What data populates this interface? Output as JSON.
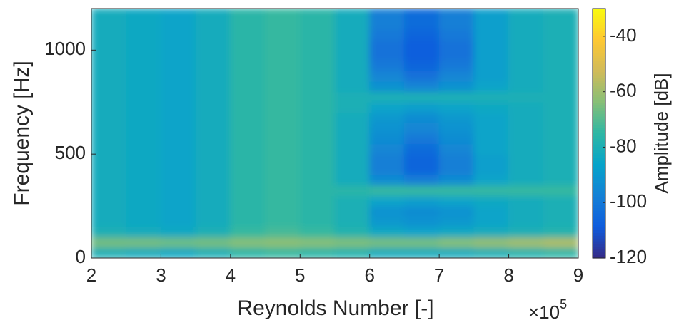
{
  "chart_data": {
    "type": "heatmap",
    "xlabel": "Reynolds Number [-]",
    "ylabel": "Frequency [Hz]",
    "colorbar_label": "Amplitude [dB]",
    "x_multiplier": {
      "base": "×10",
      "power": "5"
    },
    "colormap": "parula",
    "xlim": [
      2,
      9
    ],
    "xticks": [
      2,
      3,
      4,
      5,
      6,
      7,
      8,
      9
    ],
    "ylim": [
      0,
      1200
    ],
    "yticks": [
      0,
      500,
      1000
    ],
    "clim": [
      -120,
      -30
    ],
    "cticks": [
      -120,
      -100,
      -80,
      -60,
      -40
    ],
    "x": [
      2.25,
      2.75,
      3.25,
      3.75,
      4.25,
      4.75,
      5.25,
      5.75,
      6.25,
      6.75,
      7.25,
      7.75,
      8.25,
      8.75
    ],
    "y": [
      25,
      75,
      125,
      175,
      225,
      275,
      325,
      375,
      425,
      475,
      525,
      575,
      625,
      675,
      725,
      775,
      825,
      875,
      925,
      975,
      1025,
      1075,
      1125,
      1175
    ],
    "z": [
      [
        -80,
        -82,
        -84,
        -80,
        -76,
        -74,
        -76,
        -78,
        -82,
        -82,
        -82,
        -80,
        -78,
        -76
      ],
      [
        -66,
        -66,
        -67,
        -66,
        -64,
        -63,
        -64,
        -65,
        -66,
        -66,
        -64,
        -62,
        -60,
        -58
      ],
      [
        -80,
        -82,
        -84,
        -80,
        -74,
        -72,
        -74,
        -78,
        -84,
        -86,
        -84,
        -82,
        -80,
        -78
      ],
      [
        -82,
        -84,
        -86,
        -82,
        -76,
        -74,
        -76,
        -80,
        -90,
        -92,
        -90,
        -86,
        -82,
        -80
      ],
      [
        -82,
        -84,
        -86,
        -82,
        -76,
        -74,
        -76,
        -80,
        -92,
        -94,
        -92,
        -86,
        -82,
        -80
      ],
      [
        -82,
        -84,
        -86,
        -82,
        -76,
        -74,
        -76,
        -80,
        -86,
        -88,
        -86,
        -84,
        -82,
        -80
      ],
      [
        -82,
        -84,
        -86,
        -82,
        -76,
        -74,
        -76,
        -76,
        -74,
        -74,
        -74,
        -74,
        -74,
        -74
      ],
      [
        -82,
        -84,
        -86,
        -82,
        -76,
        -74,
        -76,
        -82,
        -94,
        -98,
        -94,
        -86,
        -82,
        -80
      ],
      [
        -82,
        -84,
        -86,
        -82,
        -76,
        -74,
        -76,
        -82,
        -98,
        -106,
        -98,
        -88,
        -82,
        -80
      ],
      [
        -82,
        -84,
        -86,
        -82,
        -76,
        -74,
        -76,
        -82,
        -98,
        -106,
        -98,
        -88,
        -82,
        -80
      ],
      [
        -82,
        -84,
        -86,
        -82,
        -76,
        -74,
        -76,
        -82,
        -96,
        -104,
        -96,
        -86,
        -82,
        -80
      ],
      [
        -82,
        -84,
        -86,
        -82,
        -76,
        -74,
        -76,
        -82,
        -94,
        -100,
        -94,
        -86,
        -82,
        -80
      ],
      [
        -82,
        -84,
        -86,
        -82,
        -76,
        -74,
        -76,
        -82,
        -92,
        -96,
        -92,
        -86,
        -82,
        -80
      ],
      [
        -82,
        -84,
        -86,
        -82,
        -76,
        -74,
        -76,
        -82,
        -90,
        -94,
        -90,
        -86,
        -82,
        -80
      ],
      [
        -82,
        -84,
        -86,
        -82,
        -76,
        -74,
        -76,
        -80,
        -86,
        -88,
        -86,
        -84,
        -82,
        -80
      ],
      [
        -82,
        -84,
        -86,
        -82,
        -76,
        -74,
        -76,
        -80,
        -80,
        -80,
        -80,
        -80,
        -80,
        -80
      ],
      [
        -82,
        -84,
        -86,
        -82,
        -76,
        -74,
        -76,
        -82,
        -92,
        -96,
        -92,
        -86,
        -82,
        -80
      ],
      [
        -82,
        -84,
        -86,
        -82,
        -76,
        -74,
        -76,
        -82,
        -96,
        -102,
        -96,
        -88,
        -82,
        -80
      ],
      [
        -82,
        -84,
        -86,
        -82,
        -76,
        -74,
        -76,
        -82,
        -100,
        -106,
        -100,
        -88,
        -82,
        -80
      ],
      [
        -82,
        -84,
        -86,
        -82,
        -76,
        -74,
        -76,
        -82,
        -102,
        -108,
        -102,
        -88,
        -82,
        -80
      ],
      [
        -82,
        -84,
        -86,
        -82,
        -76,
        -74,
        -76,
        -82,
        -102,
        -108,
        -102,
        -88,
        -82,
        -80
      ],
      [
        -82,
        -84,
        -86,
        -82,
        -76,
        -74,
        -76,
        -82,
        -100,
        -106,
        -100,
        -88,
        -82,
        -80
      ],
      [
        -82,
        -84,
        -86,
        -82,
        -76,
        -74,
        -76,
        -82,
        -98,
        -104,
        -98,
        -88,
        -82,
        -80
      ],
      [
        -82,
        -84,
        -86,
        -82,
        -76,
        -74,
        -76,
        -82,
        -98,
        -104,
        -98,
        -88,
        -82,
        -80
      ]
    ]
  }
}
